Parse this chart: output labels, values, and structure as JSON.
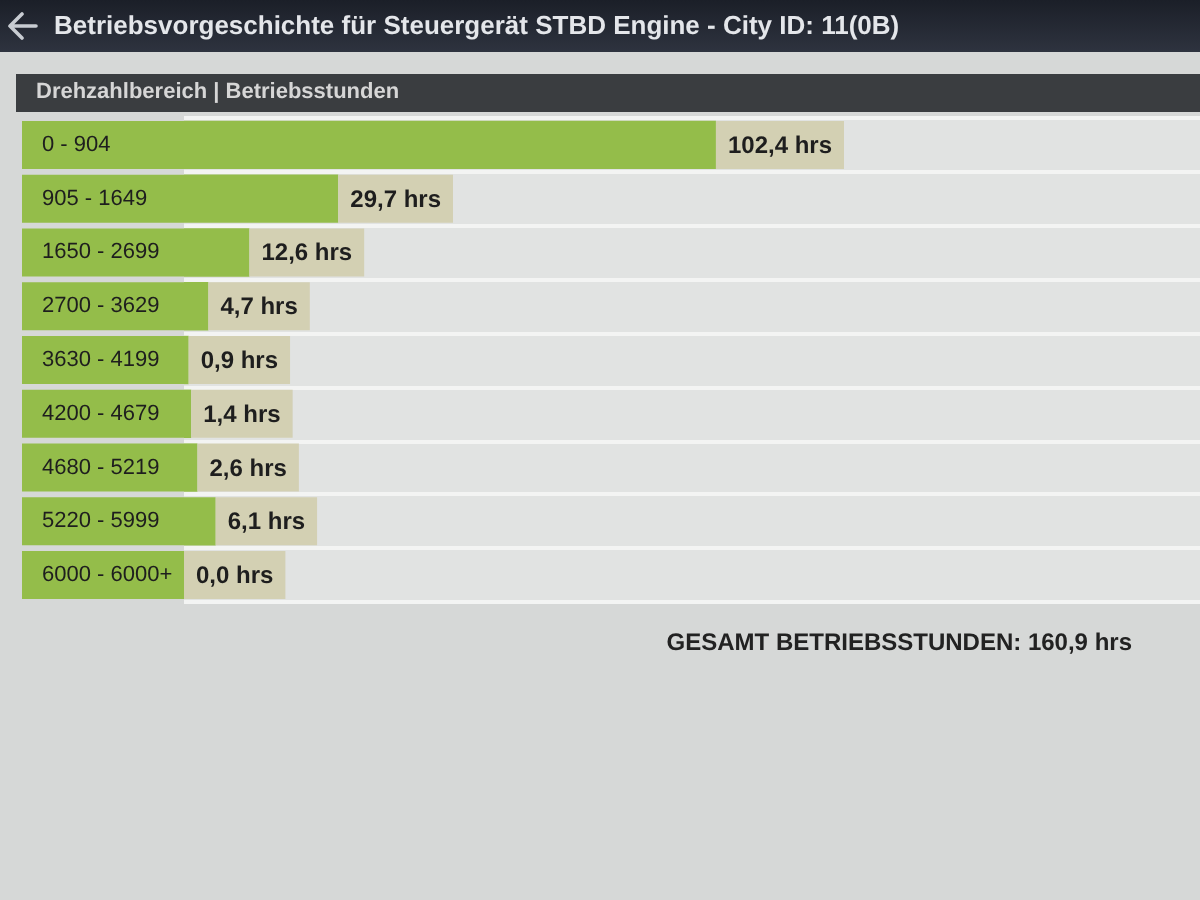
{
  "chart_data": {
    "type": "bar",
    "orientation": "horizontal",
    "title": "Betriebsvorgeschichte für Steuergerät STBD Engine - City ID: 11(0B)",
    "subtitle": "Drehzahlbereich | Betriebsstunden",
    "categories": [
      "0 - 904",
      "905 - 1649",
      "1650 - 2699",
      "2700 - 3629",
      "3630 - 4199",
      "4200 - 4679",
      "4680 - 5219",
      "5220 - 5999",
      "6000 - 6000+"
    ],
    "values": [
      102.4,
      29.7,
      12.6,
      4.7,
      0.9,
      1.4,
      2.6,
      6.1,
      0.0
    ],
    "value_labels": [
      "102,4 hrs",
      "29,7 hrs",
      "12,6 hrs",
      "4,7 hrs",
      "0,9 hrs",
      "1,4 hrs",
      "2,6 hrs",
      "6,1 hrs",
      "0,0 hrs"
    ],
    "color": "#94bd4a",
    "grid": "y",
    "annotations": [
      "GESAMT BETRIEBSSTUNDEN: 160,9 hrs"
    ]
  }
}
